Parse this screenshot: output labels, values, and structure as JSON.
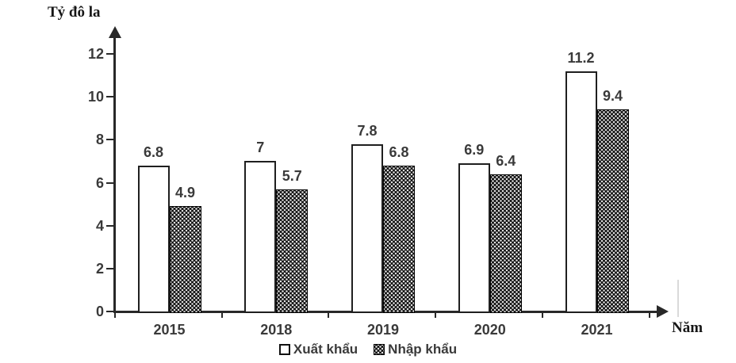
{
  "chart_data": {
    "type": "bar",
    "title": "",
    "ylabel": "Tỷ đô la",
    "xlabel": "Năm",
    "categories": [
      "2015",
      "2018",
      "2019",
      "2020",
      "2021"
    ],
    "series": [
      {
        "name": "Xuất khẩu",
        "style": "white-outline",
        "values": [
          6.8,
          7,
          7.8,
          6.9,
          11.2
        ]
      },
      {
        "name": "Nhập khẩu",
        "style": "black-dotted",
        "values": [
          4.9,
          5.7,
          6.8,
          6.4,
          9.4
        ]
      }
    ],
    "y_ticks": [
      0,
      2,
      4,
      6,
      8,
      10,
      12
    ],
    "ylim": [
      0,
      13
    ],
    "grid": false,
    "legend_position": "bottom",
    "axis_arrows": true
  },
  "colors": {
    "axis": "#282828",
    "number_text": "#3a3a3a",
    "serif_text": "#161616",
    "export_bar_fill": "#ffffff",
    "export_bar_border": "#1f1f1f",
    "import_bar_fill": "#0d0d0d",
    "import_bar_dots": "#e6e6e6",
    "background": "#ffffff"
  }
}
